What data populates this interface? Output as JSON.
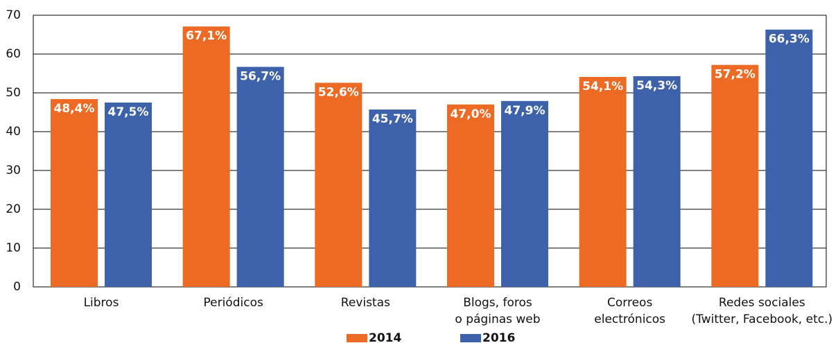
{
  "chart_data": {
    "type": "bar",
    "categories": [
      "Libros",
      "Periódicos",
      "Revistas",
      "Blogs, foros\no páginas web",
      "Correos\nelectrónicos",
      "Redes sociales\n(Twitter, Facebook, etc.)"
    ],
    "series": [
      {
        "name": "2014",
        "color": "#ec6a23",
        "values": [
          48.4,
          67.1,
          52.6,
          47.0,
          54.1,
          57.2
        ],
        "value_labels": [
          "48,4%",
          "67,1%",
          "52,6%",
          "47,0%",
          "54,1%",
          "57,2%"
        ]
      },
      {
        "name": "2016",
        "color": "#3d62aa",
        "values": [
          47.5,
          56.7,
          45.7,
          47.9,
          54.3,
          66.3
        ],
        "value_labels": [
          "47,5%",
          "56,7%",
          "45,7%",
          "47,9%",
          "54,3%",
          "66,3%"
        ]
      }
    ],
    "ylim": [
      0,
      70
    ],
    "yticks": [
      0,
      10,
      20,
      30,
      40,
      50,
      60,
      70
    ],
    "grid": true,
    "legend": "bottom"
  }
}
